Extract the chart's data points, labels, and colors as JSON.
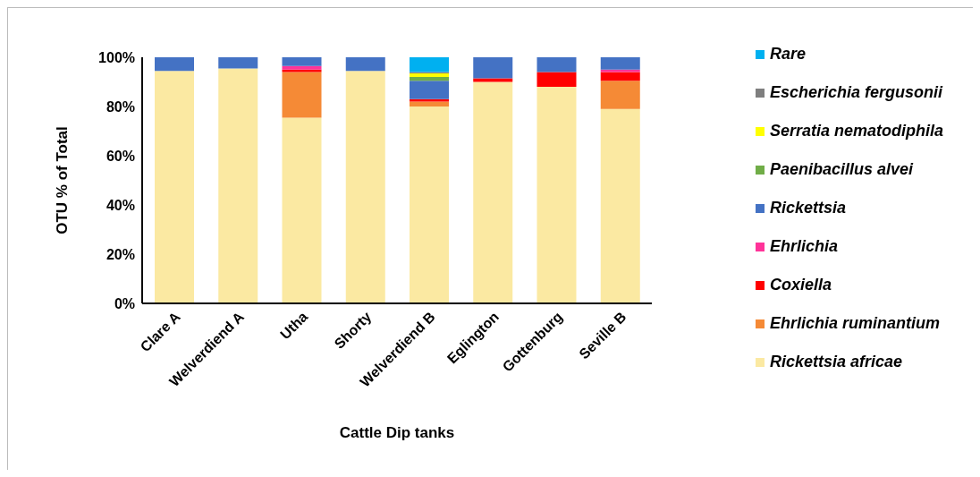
{
  "chart_data": {
    "type": "bar",
    "stacked": true,
    "xlabel": "Cattle Dip tanks",
    "ylabel": "OTU % of Total",
    "categories": [
      "Clare A",
      "Welverdiend A",
      "Utha",
      "Shorty",
      "Welverdiend B",
      "Eglington",
      "Gottenburg",
      "Seville B"
    ],
    "series": [
      {
        "name": "Rickettsia africae",
        "color": "#fbe9a2",
        "values": [
          94.5,
          95.5,
          75.5,
          94.5,
          80,
          90,
          88,
          79
        ]
      },
      {
        "name": "Ehrlichia ruminantium",
        "color": "#f58a36",
        "values": [
          0,
          0,
          18.5,
          0,
          2,
          0,
          0,
          11.5
        ]
      },
      {
        "name": "Coxiella",
        "color": "#ff0000",
        "values": [
          0,
          0,
          1,
          0,
          1,
          1.5,
          6,
          3.5
        ]
      },
      {
        "name": "Ehrlichia",
        "color": "#ff3399",
        "values": [
          0,
          0,
          1.5,
          0,
          0,
          0,
          0,
          1
        ]
      },
      {
        "name": "Rickettsia",
        "color": "#4472c4",
        "values": [
          5.5,
          4.5,
          3.5,
          5.5,
          7.5,
          8.5,
          6,
          5
        ]
      },
      {
        "name": "Paenibacillus alvei",
        "color": "#70ad47",
        "values": [
          0,
          0,
          0,
          0,
          1.5,
          0,
          0,
          0
        ]
      },
      {
        "name": "Serratia nematodiphila",
        "color": "#ffff00",
        "values": [
          0,
          0,
          0,
          0,
          1.5,
          0,
          0,
          0
        ]
      },
      {
        "name": "Escherichia fergusonii",
        "color": "#7f7f7f",
        "values": [
          0,
          0,
          0,
          0,
          0.5,
          0,
          0,
          0
        ]
      },
      {
        "name": "Rare",
        "color": "#00b0f0",
        "values": [
          0,
          0,
          0,
          0,
          6,
          0,
          0,
          0
        ]
      }
    ],
    "ylim": [
      0,
      100
    ],
    "yticks": [
      {
        "value": 0,
        "label": "0%"
      },
      {
        "value": 20,
        "label": "20%"
      },
      {
        "value": 40,
        "label": "40%"
      },
      {
        "value": 60,
        "label": "60%"
      },
      {
        "value": 80,
        "label": "80%"
      },
      {
        "value": 100,
        "label": "100%"
      }
    ],
    "grid": false,
    "legend": "right"
  }
}
